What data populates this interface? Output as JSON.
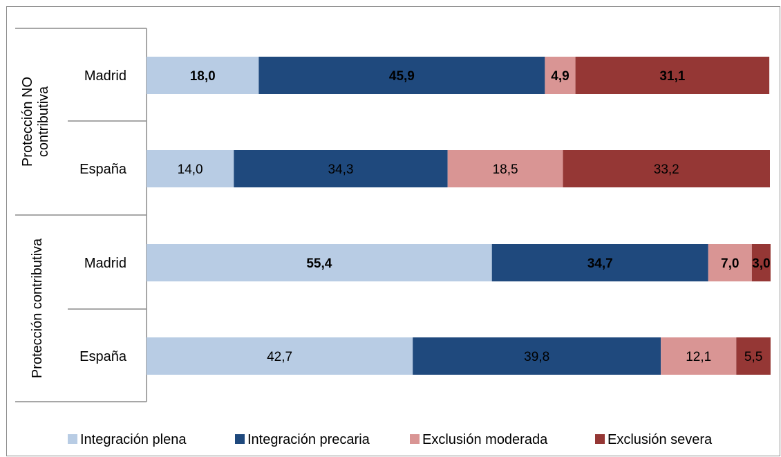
{
  "chart_data": {
    "type": "bar",
    "orientation": "horizontal",
    "stacked": true,
    "percent": true,
    "xlim": [
      0,
      100
    ],
    "groups": [
      {
        "label": "Protección NO contributiva",
        "label_lines": [
          "Protección NO",
          "contributiva"
        ]
      },
      {
        "label": "Protección contributiva",
        "label_lines": [
          "Protección contributiva"
        ]
      }
    ],
    "categories": [
      "Madrid",
      "España",
      "Madrid",
      "España"
    ],
    "category_groups": [
      0,
      0,
      1,
      1
    ],
    "series": [
      {
        "name": "Integración plena",
        "values": [
          18.0,
          14.0,
          55.4,
          42.7
        ],
        "labels": [
          "18,0",
          "14,0",
          "55,4",
          "42,7"
        ]
      },
      {
        "name": "Integración precaria",
        "values": [
          45.9,
          34.3,
          34.7,
          39.8
        ],
        "labels": [
          "45,9",
          "34,3",
          "34,7",
          "39,8"
        ]
      },
      {
        "name": "Exclusión moderada",
        "values": [
          4.9,
          18.5,
          7.0,
          12.1
        ],
        "labels": [
          "4,9",
          "18,5",
          "7,0",
          "12,1"
        ]
      },
      {
        "name": "Exclusión severa",
        "values": [
          31.1,
          33.2,
          3.0,
          5.5
        ],
        "labels": [
          "31,1",
          "33,2",
          "3,0",
          "5,5"
        ]
      }
    ],
    "bold_rows": [
      0,
      2
    ],
    "colors": [
      "#b8cce4",
      "#1f497d",
      "#d99594",
      "#953735"
    ],
    "label_colors": [
      "#000000",
      "#000000",
      "#000000",
      "#000000"
    ],
    "legend": {
      "position": "bottom"
    },
    "grid": false
  }
}
